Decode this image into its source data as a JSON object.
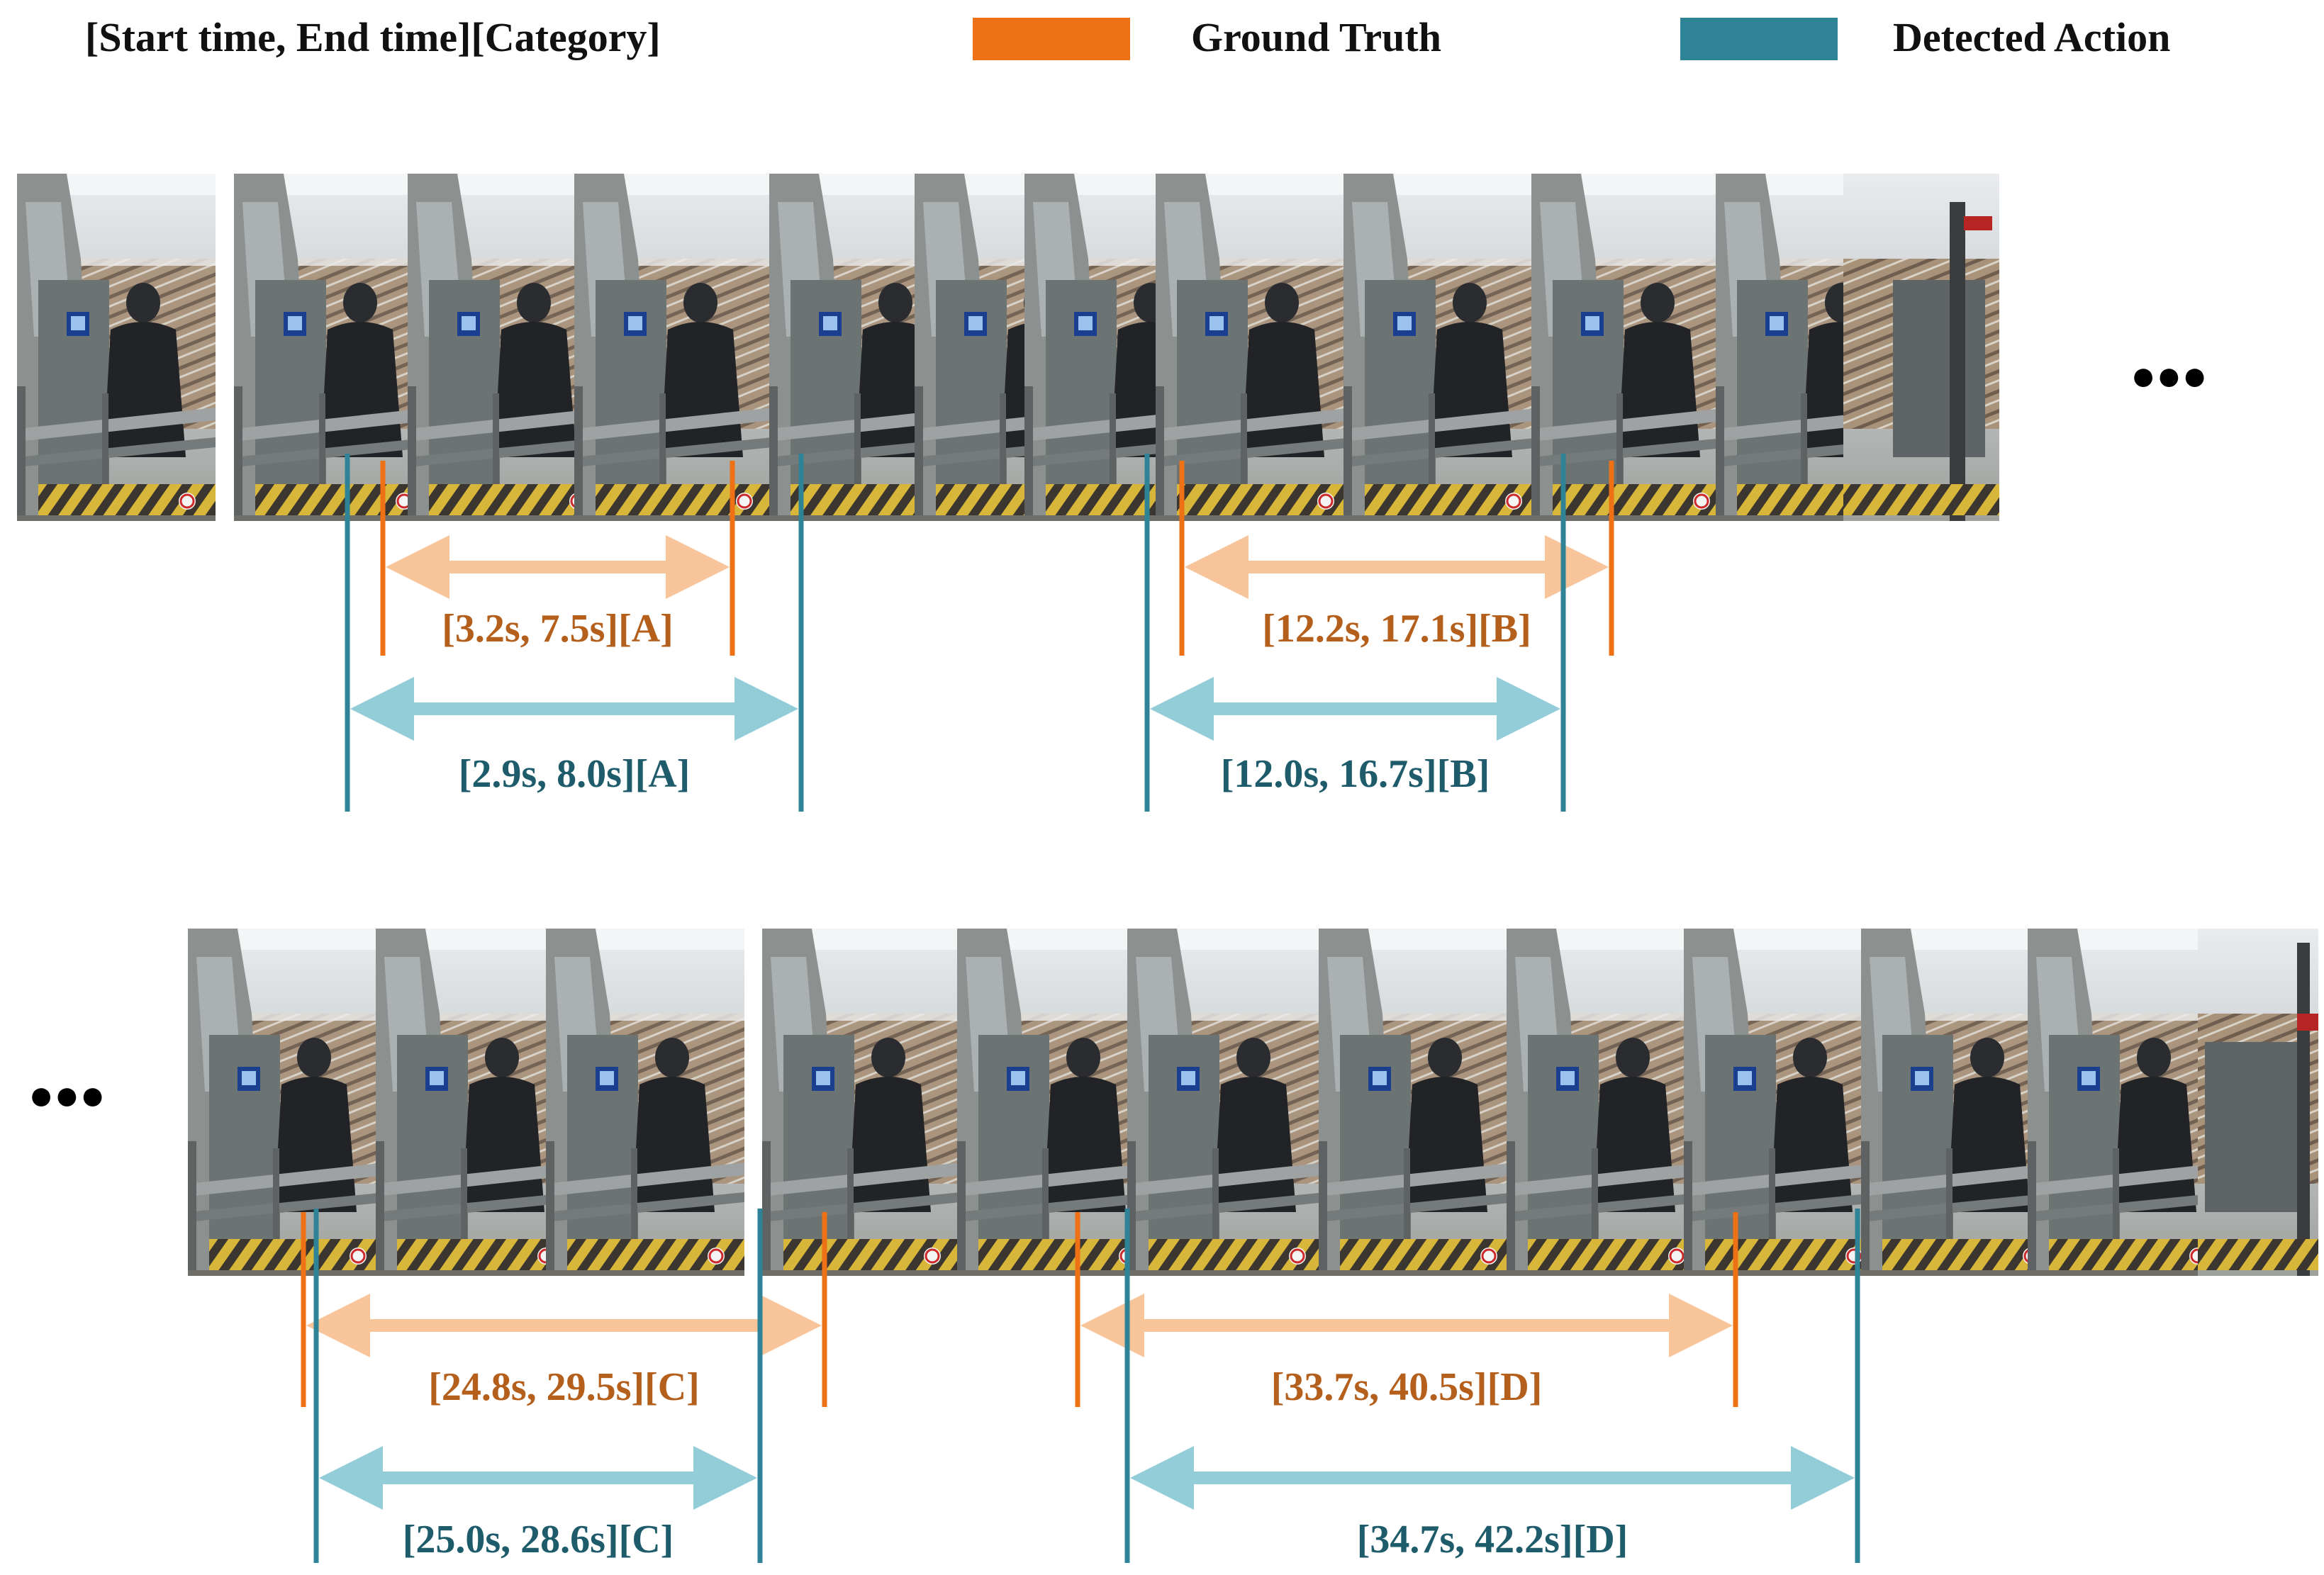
{
  "header": {
    "format_label": "[Start time, End time][Category]",
    "legend": [
      {
        "label": "Ground Truth",
        "color": "#EE7116"
      },
      {
        "label": "Detected Action",
        "color": "#2E8396"
      }
    ]
  },
  "colors": {
    "gt_line": "#EE7116",
    "gt_arrow": "#F8C49A",
    "gt_text": "#B45F1B",
    "det_line": "#2E8396",
    "det_arrow": "#92CDD8",
    "det_text": "#1F5C6B"
  },
  "continuation_marker": "●●●",
  "rows": [
    {
      "frame_count": 11,
      "segments": [
        {
          "type": "ground_truth",
          "start": 3.2,
          "end": 7.5,
          "category": "A",
          "label": "[3.2s, 7.5s][A]"
        },
        {
          "type": "detected",
          "start": 2.9,
          "end": 8.0,
          "category": "A",
          "label": "[2.9s, 8.0s][A]"
        },
        {
          "type": "ground_truth",
          "start": 12.2,
          "end": 17.1,
          "category": "B",
          "label": "[12.2s, 17.1s][B]"
        },
        {
          "type": "detected",
          "start": 12.0,
          "end": 16.7,
          "category": "B",
          "label": "[12.0s, 16.7s][B]"
        }
      ]
    },
    {
      "frame_count": 11,
      "segments": [
        {
          "type": "ground_truth",
          "start": 24.8,
          "end": 29.5,
          "category": "C",
          "label": "[24.8s, 29.5s][C]"
        },
        {
          "type": "detected",
          "start": 25.0,
          "end": 28.6,
          "category": "C",
          "label": "[25.0s, 28.6s][C]"
        },
        {
          "type": "ground_truth",
          "start": 33.7,
          "end": 40.5,
          "category": "D",
          "label": "[33.7s, 40.5s][D]"
        },
        {
          "type": "detected",
          "start": 34.7,
          "end": 42.2,
          "category": "D",
          "label": "[34.7s, 42.2s][D]"
        }
      ]
    }
  ]
}
